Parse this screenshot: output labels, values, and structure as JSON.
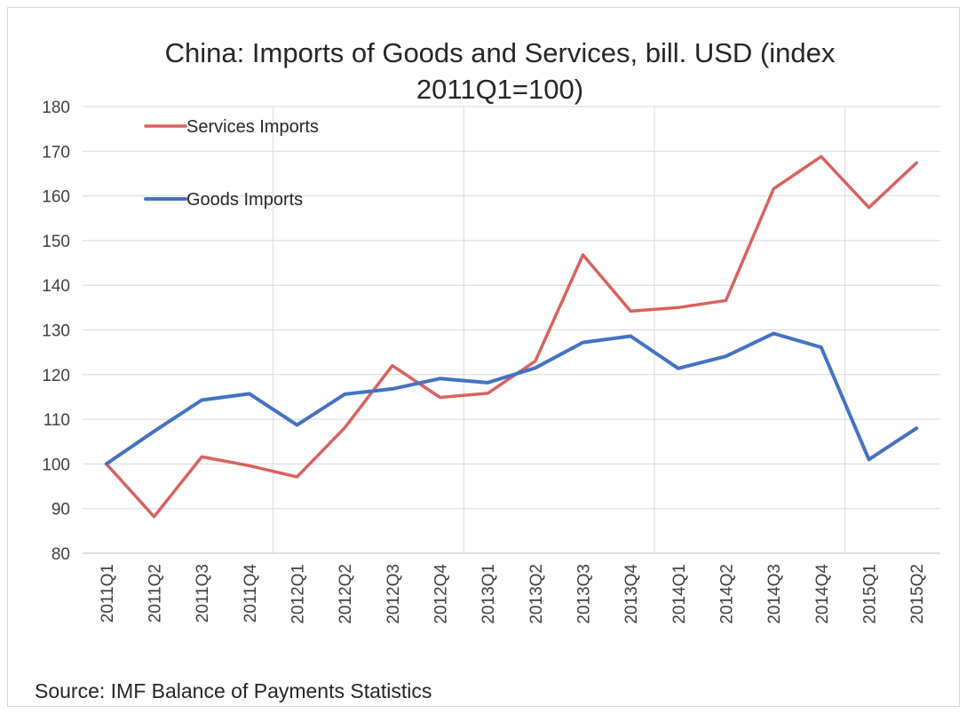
{
  "chart_data": {
    "type": "line",
    "title_lines": [
      "China: Imports of Goods and Services, bill. USD (index",
      "2011Q1=100)"
    ],
    "categories": [
      "2011Q1",
      "2011Q2",
      "2011Q3",
      "2011Q4",
      "2012Q1",
      "2012Q2",
      "2012Q3",
      "2012Q4",
      "2013Q1",
      "2013Q2",
      "2013Q3",
      "2013Q4",
      "2014Q1",
      "2014Q2",
      "2014Q3",
      "2014Q4",
      "2015Q1",
      "2015Q2"
    ],
    "series": [
      {
        "name": "Services Imports",
        "color": "#d9625e",
        "values": [
          100,
          88.2,
          101.6,
          99.6,
          97.1,
          108.1,
          122.0,
          114.9,
          115.8,
          123.0,
          146.8,
          134.2,
          135.0,
          136.6,
          161.6,
          168.8,
          157.4,
          167.4
        ]
      },
      {
        "name": "Goods Imports",
        "color": "#4472c4",
        "values": [
          100,
          107.3,
          114.3,
          115.7,
          108.7,
          115.6,
          116.8,
          119.1,
          118.2,
          121.5,
          127.2,
          128.6,
          121.4,
          124.1,
          129.2,
          126.1,
          101.0,
          108.0
        ]
      }
    ],
    "ylim": [
      80,
      180
    ],
    "yticks": [
      80,
      90,
      100,
      110,
      120,
      130,
      140,
      150,
      160,
      170,
      180
    ],
    "grid": true,
    "legend_position": "top-left"
  },
  "source_text": "Source: IMF Balance of Payments Statistics"
}
